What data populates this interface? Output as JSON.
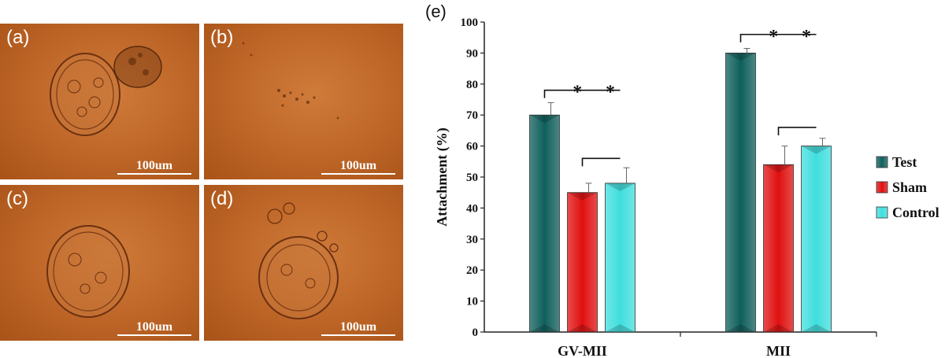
{
  "panels": [
    {
      "label": "(a)",
      "scale": "100um"
    },
    {
      "label": "(b)",
      "scale": "100um"
    },
    {
      "label": "(c)",
      "scale": "100um"
    },
    {
      "label": "(d)",
      "scale": "100um"
    }
  ],
  "chart_label": "(e)",
  "chart_data": {
    "type": "bar",
    "title": "",
    "xlabel": "",
    "ylabel": "Attachment (%)",
    "ylim": [
      0,
      100
    ],
    "yticks": [
      "0",
      "10",
      "20",
      "30",
      "40",
      "50",
      "60",
      "70",
      "80",
      "90",
      "100"
    ],
    "categories": [
      "GV-MII",
      "MII"
    ],
    "series": [
      {
        "name": "Test",
        "color": "#0f5f5c",
        "values": [
          70,
          90
        ],
        "errors": [
          4,
          1.5
        ]
      },
      {
        "name": "Sham",
        "color": "#e01010",
        "values": [
          45,
          54
        ],
        "errors": [
          3,
          6
        ]
      },
      {
        "name": "Control",
        "color": "#40dede",
        "values": [
          48,
          60
        ],
        "errors": [
          5,
          2.5
        ]
      }
    ],
    "significance": [
      {
        "category": 0,
        "from": 0,
        "to": 2,
        "y": 78,
        "marks": [
          "*",
          "*"
        ]
      },
      {
        "category": 0,
        "from": 1,
        "to": 2,
        "y": 56,
        "marks": []
      },
      {
        "category": 1,
        "from": 0,
        "to": 2,
        "y": 96,
        "marks": [
          "*",
          "*"
        ]
      },
      {
        "category": 1,
        "from": 1,
        "to": 2,
        "y": 66,
        "marks": []
      }
    ],
    "legend_position": "right",
    "grid": false
  }
}
